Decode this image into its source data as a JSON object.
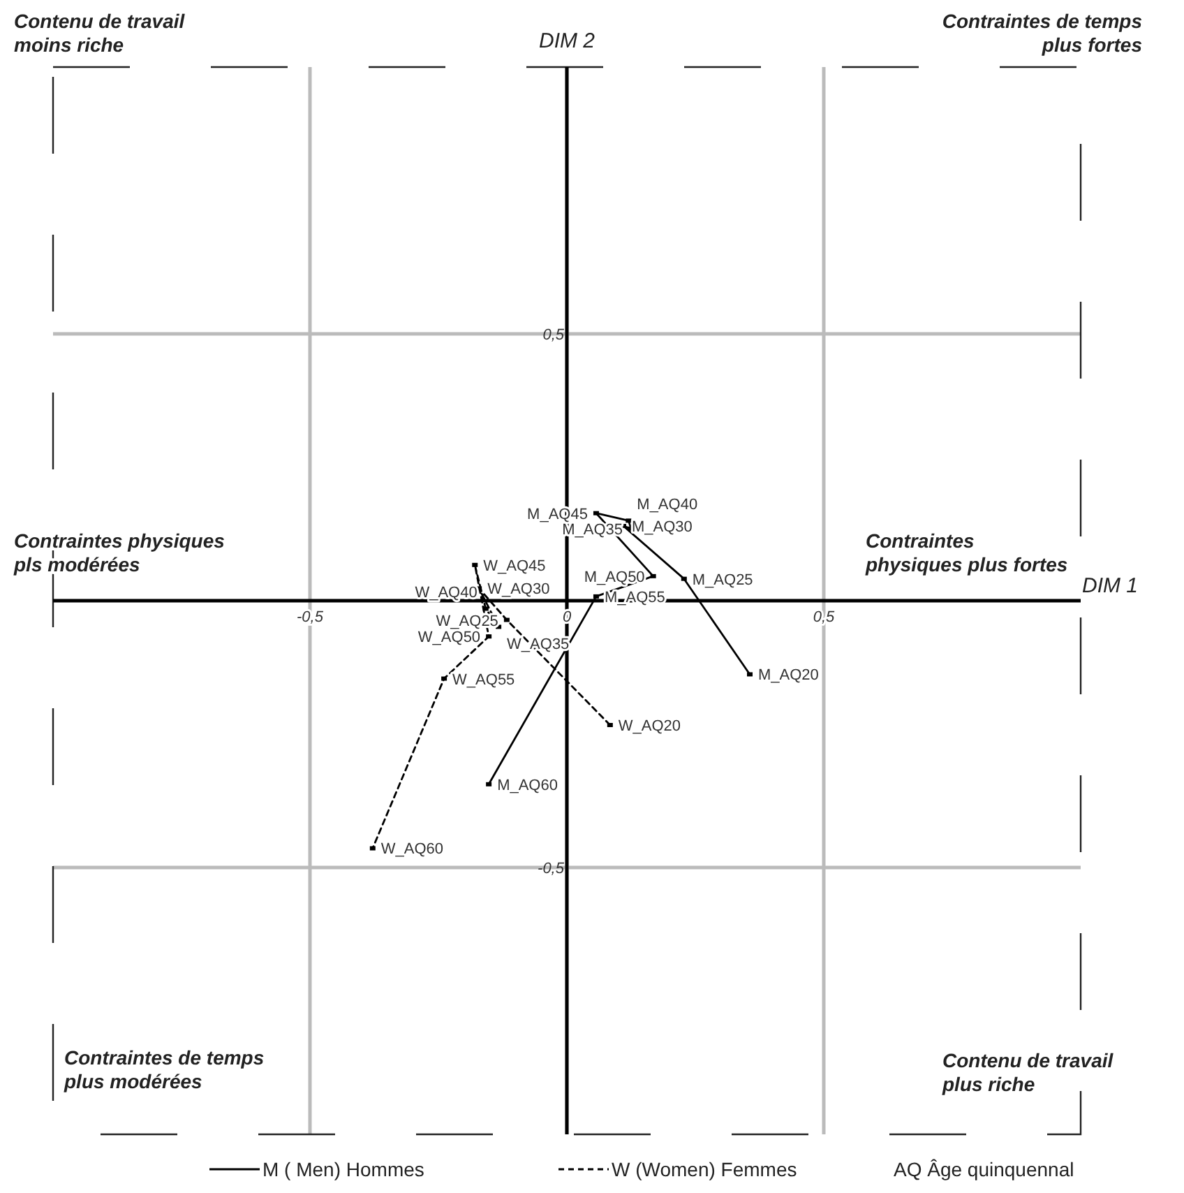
{
  "chart_data": {
    "type": "line",
    "xlabel": "DIM 1",
    "ylabel": "DIM 2",
    "xlim": [
      -1,
      1
    ],
    "ylim": [
      -1,
      1
    ],
    "xticks": [
      {
        "value": -0.5,
        "label": "-0,5"
      },
      {
        "value": 0,
        "label": "0"
      },
      {
        "value": 0.5,
        "label": "0,5"
      }
    ],
    "yticks": [
      {
        "value": -0.5,
        "label": "-0,5"
      },
      {
        "value": 0.5,
        "label": "0,5"
      }
    ],
    "grid": true,
    "legend": "bottom",
    "marker": "square",
    "series": [
      {
        "name": "M ( Men) Hommes",
        "color": "#000000",
        "line_style": "solid",
        "x": [
          0.356,
          0.228,
          0.11,
          0.125,
          0.12,
          0.057,
          0.168,
          0.057,
          -0.152
        ],
        "values": [
          -0.138,
          0.041,
          0.14,
          0.135,
          0.15,
          0.164,
          0.046,
          0.008,
          -0.344
        ]
      },
      {
        "name": "W (Women)  Femmes",
        "color": "#000000",
        "line_style": "dashed",
        "x": [
          0.084,
          -0.117,
          -0.171,
          -0.133,
          -0.158,
          -0.179,
          -0.152,
          -0.239,
          -0.378
        ],
        "values": [
          -0.233,
          -0.036,
          0.023,
          -0.049,
          -0.015,
          0.067,
          -0.067,
          -0.146,
          -0.464
        ]
      }
    ],
    "annotations": [
      "Contenu de travail\nmoins riche",
      "Contraintes de temps\nplus fortes",
      "Contraintes physiques\npls modérées",
      "Contraintes\nphysiques plus fortes",
      "Contraintes de temps\nplus modérées",
      "Contenu de travail\nplus riche",
      "AQ  Âge quinquennal",
      {
        "text": "M_AQ20",
        "x": 0.356,
        "y": -0.138
      },
      {
        "text": "M_AQ25",
        "x": 0.228,
        "y": 0.041
      },
      {
        "text": "M_AQ30",
        "x": 0.11,
        "y": 0.14
      },
      {
        "text": "M_AQ35",
        "x": 0.125,
        "y": 0.135
      },
      {
        "text": "M_AQ40",
        "x": 0.12,
        "y": 0.15
      },
      {
        "text": "M_AQ45",
        "x": 0.057,
        "y": 0.164
      },
      {
        "text": "M_AQ50",
        "x": 0.168,
        "y": 0.046
      },
      {
        "text": "M_AQ55",
        "x": 0.057,
        "y": 0.008
      },
      {
        "text": "M_AQ60",
        "x": -0.152,
        "y": -0.344
      },
      {
        "text": "W_AQ20",
        "x": 0.084,
        "y": -0.233
      },
      {
        "text": "W_AQ25",
        "x": -0.117,
        "y": -0.036
      },
      {
        "text": "W_AQ30",
        "x": -0.171,
        "y": 0.023
      },
      {
        "text": "W_AQ35",
        "x": -0.133,
        "y": -0.049
      },
      {
        "text": "W_AQ40",
        "x": -0.158,
        "y": -0.015
      },
      {
        "text": "W_AQ45",
        "x": -0.179,
        "y": 0.067
      },
      {
        "text": "W_AQ50",
        "x": -0.152,
        "y": -0.067
      },
      {
        "text": "W_AQ55",
        "x": -0.239,
        "y": -0.146
      },
      {
        "text": "W_AQ60",
        "x": -0.378,
        "y": -0.464
      }
    ]
  }
}
